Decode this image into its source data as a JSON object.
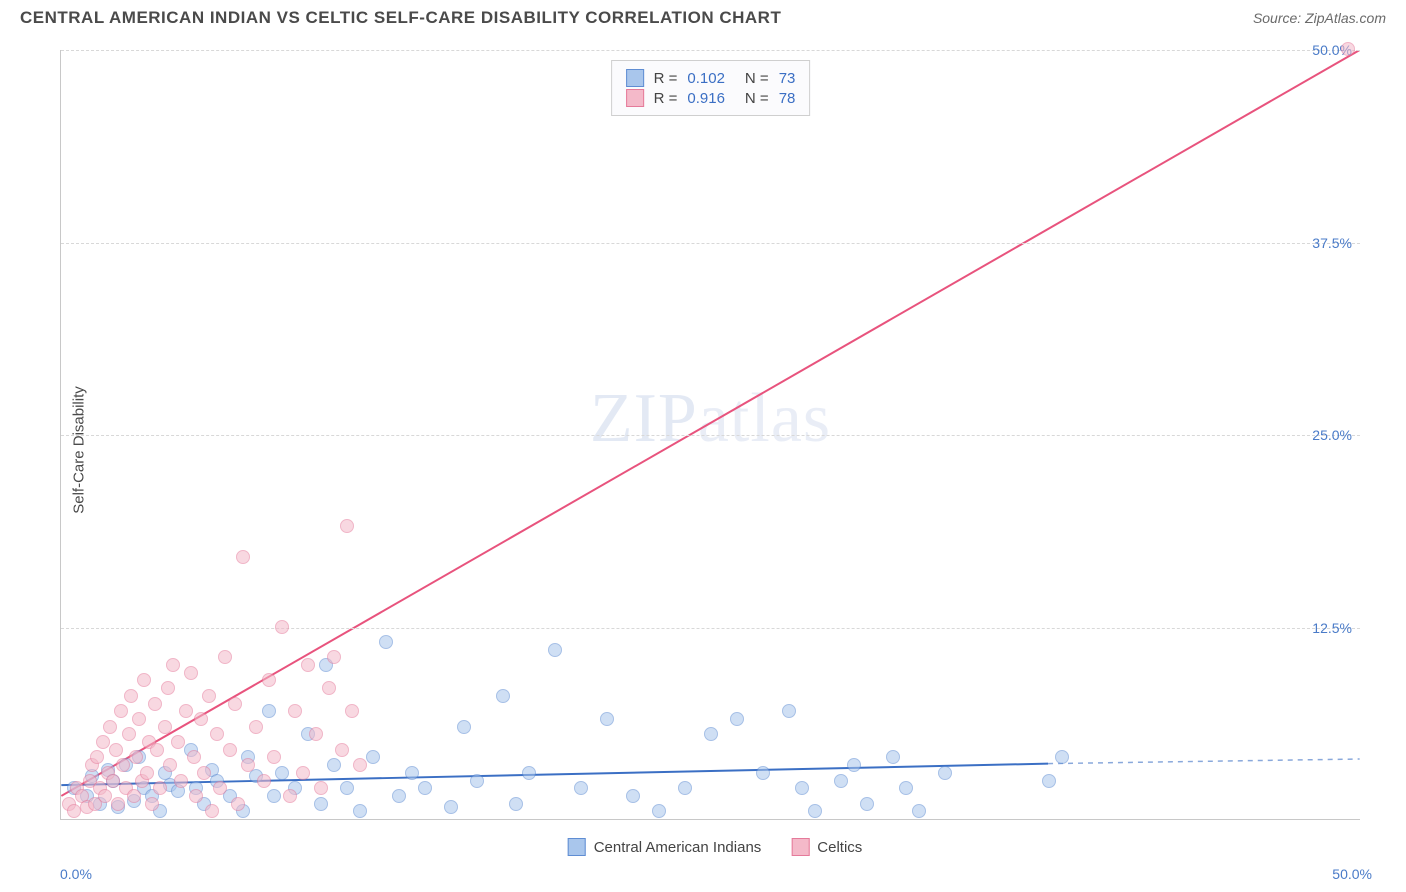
{
  "title": "CENTRAL AMERICAN INDIAN VS CELTIC SELF-CARE DISABILITY CORRELATION CHART",
  "source": "Source: ZipAtlas.com",
  "ylabel": "Self-Care Disability",
  "watermark": {
    "part1": "ZIP",
    "part2": "atlas"
  },
  "chart": {
    "type": "scatter",
    "xlim": [
      0,
      50
    ],
    "ylim": [
      0,
      50
    ],
    "x_tick_start": "0.0%",
    "x_tick_end": "50.0%",
    "y_ticks": [
      {
        "v": 12.5,
        "label": "12.5%"
      },
      {
        "v": 25.0,
        "label": "25.0%"
      },
      {
        "v": 37.5,
        "label": "37.5%"
      },
      {
        "v": 50.0,
        "label": "50.0%"
      }
    ],
    "grid_color": "#d8d8d8",
    "axis_color": "#c8c8c8",
    "background_color": "#ffffff",
    "tick_label_color": "#4a7bc8",
    "series": [
      {
        "name": "Central American Indians",
        "marker_fill": "#a9c6ec",
        "marker_stroke": "#5f8dd3",
        "line_color": "#3b6fc4",
        "line_width": 2,
        "R": "0.102",
        "N": "73",
        "regression": {
          "x1": 0,
          "y1": 2.2,
          "x2": 38,
          "y2": 3.6,
          "dash_from_x": 38,
          "dash_to_x": 50,
          "dash_y2": 3.9
        },
        "points": [
          [
            0.5,
            2.0
          ],
          [
            1.0,
            1.5
          ],
          [
            1.2,
            2.8
          ],
          [
            1.5,
            1.0
          ],
          [
            1.8,
            3.2
          ],
          [
            2.0,
            2.5
          ],
          [
            2.2,
            0.8
          ],
          [
            2.5,
            3.5
          ],
          [
            2.8,
            1.2
          ],
          [
            3.0,
            4.0
          ],
          [
            3.2,
            2.0
          ],
          [
            3.5,
            1.5
          ],
          [
            3.8,
            0.5
          ],
          [
            4.0,
            3.0
          ],
          [
            4.2,
            2.2
          ],
          [
            4.5,
            1.8
          ],
          [
            5.0,
            4.5
          ],
          [
            5.2,
            2.0
          ],
          [
            5.5,
            1.0
          ],
          [
            5.8,
            3.2
          ],
          [
            6.0,
            2.5
          ],
          [
            6.5,
            1.5
          ],
          [
            7.0,
            0.5
          ],
          [
            7.2,
            4.0
          ],
          [
            7.5,
            2.8
          ],
          [
            8.0,
            7.0
          ],
          [
            8.2,
            1.5
          ],
          [
            8.5,
            3.0
          ],
          [
            9.0,
            2.0
          ],
          [
            9.5,
            5.5
          ],
          [
            10.0,
            1.0
          ],
          [
            10.2,
            10.0
          ],
          [
            10.5,
            3.5
          ],
          [
            11.0,
            2.0
          ],
          [
            11.5,
            0.5
          ],
          [
            12.0,
            4.0
          ],
          [
            12.5,
            11.5
          ],
          [
            13.0,
            1.5
          ],
          [
            13.5,
            3.0
          ],
          [
            14.0,
            2.0
          ],
          [
            15.0,
            0.8
          ],
          [
            15.5,
            6.0
          ],
          [
            16.0,
            2.5
          ],
          [
            17.0,
            8.0
          ],
          [
            17.5,
            1.0
          ],
          [
            18.0,
            3.0
          ],
          [
            19.0,
            11.0
          ],
          [
            20.0,
            2.0
          ],
          [
            21.0,
            6.5
          ],
          [
            22.0,
            1.5
          ],
          [
            23.0,
            0.5
          ],
          [
            24.0,
            2.0
          ],
          [
            25.0,
            5.5
          ],
          [
            26.0,
            6.5
          ],
          [
            27.0,
            3.0
          ],
          [
            28.0,
            7.0
          ],
          [
            28.5,
            2.0
          ],
          [
            29.0,
            0.5
          ],
          [
            30.0,
            2.5
          ],
          [
            30.5,
            3.5
          ],
          [
            31.0,
            1.0
          ],
          [
            32.0,
            4.0
          ],
          [
            32.5,
            2.0
          ],
          [
            33.0,
            0.5
          ],
          [
            34.0,
            3.0
          ],
          [
            38.0,
            2.5
          ],
          [
            38.5,
            4.0
          ]
        ]
      },
      {
        "name": "Celtics",
        "marker_fill": "#f4b9c9",
        "marker_stroke": "#e57a9a",
        "line_color": "#e8537d",
        "line_width": 2,
        "R": "0.916",
        "N": "78",
        "regression": {
          "x1": 0,
          "y1": 1.5,
          "x2": 50,
          "y2": 50
        },
        "points": [
          [
            0.3,
            1.0
          ],
          [
            0.5,
            0.5
          ],
          [
            0.6,
            2.0
          ],
          [
            0.8,
            1.5
          ],
          [
            1.0,
            0.8
          ],
          [
            1.1,
            2.5
          ],
          [
            1.2,
            3.5
          ],
          [
            1.3,
            1.0
          ],
          [
            1.4,
            4.0
          ],
          [
            1.5,
            2.0
          ],
          [
            1.6,
            5.0
          ],
          [
            1.7,
            1.5
          ],
          [
            1.8,
            3.0
          ],
          [
            1.9,
            6.0
          ],
          [
            2.0,
            2.5
          ],
          [
            2.1,
            4.5
          ],
          [
            2.2,
            1.0
          ],
          [
            2.3,
            7.0
          ],
          [
            2.4,
            3.5
          ],
          [
            2.5,
            2.0
          ],
          [
            2.6,
            5.5
          ],
          [
            2.7,
            8.0
          ],
          [
            2.8,
            1.5
          ],
          [
            2.9,
            4.0
          ],
          [
            3.0,
            6.5
          ],
          [
            3.1,
            2.5
          ],
          [
            3.2,
            9.0
          ],
          [
            3.3,
            3.0
          ],
          [
            3.4,
            5.0
          ],
          [
            3.5,
            1.0
          ],
          [
            3.6,
            7.5
          ],
          [
            3.7,
            4.5
          ],
          [
            3.8,
            2.0
          ],
          [
            4.0,
            6.0
          ],
          [
            4.1,
            8.5
          ],
          [
            4.2,
            3.5
          ],
          [
            4.3,
            10.0
          ],
          [
            4.5,
            5.0
          ],
          [
            4.6,
            2.5
          ],
          [
            4.8,
            7.0
          ],
          [
            5.0,
            9.5
          ],
          [
            5.1,
            4.0
          ],
          [
            5.2,
            1.5
          ],
          [
            5.4,
            6.5
          ],
          [
            5.5,
            3.0
          ],
          [
            5.7,
            8.0
          ],
          [
            5.8,
            0.5
          ],
          [
            6.0,
            5.5
          ],
          [
            6.1,
            2.0
          ],
          [
            6.3,
            10.5
          ],
          [
            6.5,
            4.5
          ],
          [
            6.7,
            7.5
          ],
          [
            6.8,
            1.0
          ],
          [
            7.0,
            17.0
          ],
          [
            7.2,
            3.5
          ],
          [
            7.5,
            6.0
          ],
          [
            7.8,
            2.5
          ],
          [
            8.0,
            9.0
          ],
          [
            8.2,
            4.0
          ],
          [
            8.5,
            12.5
          ],
          [
            8.8,
            1.5
          ],
          [
            9.0,
            7.0
          ],
          [
            9.3,
            3.0
          ],
          [
            9.5,
            10.0
          ],
          [
            9.8,
            5.5
          ],
          [
            10.0,
            2.0
          ],
          [
            10.3,
            8.5
          ],
          [
            10.5,
            10.5
          ],
          [
            10.8,
            4.5
          ],
          [
            11.0,
            19.0
          ],
          [
            11.2,
            7.0
          ],
          [
            11.5,
            3.5
          ],
          [
            49.5,
            50.0
          ]
        ]
      }
    ],
    "legend_bottom": [
      {
        "label": "Central American Indians",
        "fill": "#a9c6ec",
        "stroke": "#5f8dd3"
      },
      {
        "label": "Celtics",
        "fill": "#f4b9c9",
        "stroke": "#e57a9a"
      }
    ]
  }
}
